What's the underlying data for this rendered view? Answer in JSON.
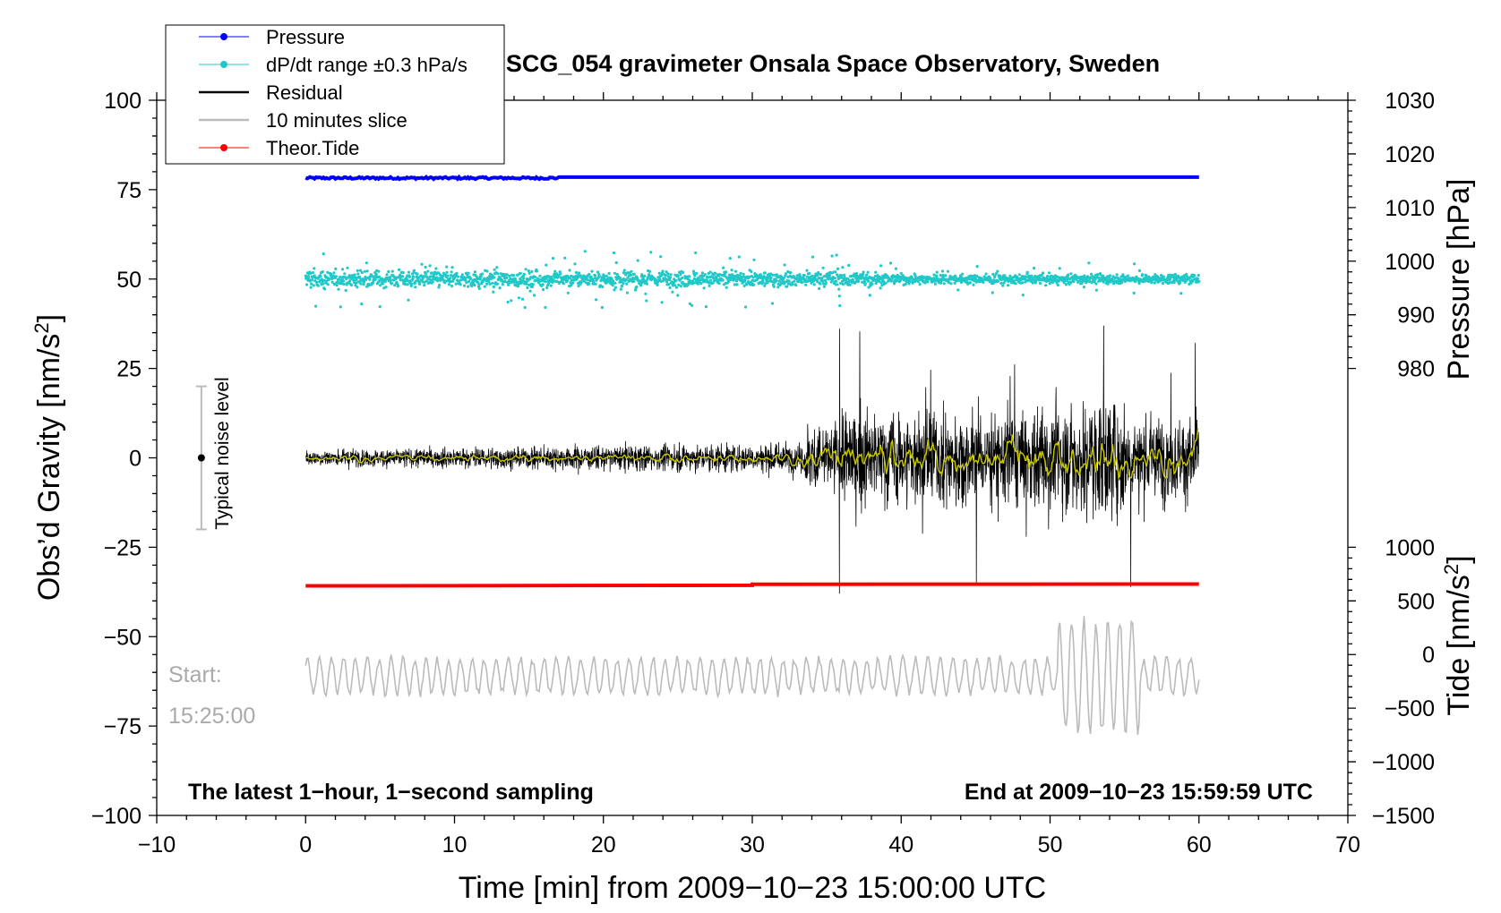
{
  "chart_data": {
    "type": "line",
    "title": "SCG_054 gravimeter Onsala Space Observatory, Sweden",
    "xlabel": "Time [min] from 2009−10−23 15:00:00 UTC",
    "ylabel_left": "Obs’d Gravity [nm/s²]",
    "ylabel_left_parts": {
      "main": "Obs’d Gravity [nm/s",
      "sup": "2",
      "end": "]"
    },
    "ylabel_right_pressure": "Pressure [hPa]",
    "ylabel_right_tide": "Tide [nm/s²]",
    "ylabel_right_tide_parts": {
      "main": "Tide [nm/s",
      "sup": "2",
      "end": "]"
    },
    "xlim": [
      -10,
      70
    ],
    "ylim": [
      -100,
      100
    ],
    "x_ticks": [
      -10,
      0,
      10,
      20,
      30,
      40,
      50,
      60,
      70
    ],
    "x_tick_labels": [
      "−10",
      "0",
      "10",
      "20",
      "30",
      "40",
      "50",
      "60",
      "70"
    ],
    "y_ticks": [
      100,
      75,
      50,
      25,
      0,
      -25,
      -50,
      -75,
      -100
    ],
    "y_tick_labels": [
      "100",
      "75",
      "50",
      "25",
      "0",
      "−25",
      "−50",
      "−75",
      "−100"
    ],
    "pressure_axis": {
      "range": [
        980,
        1030
      ],
      "ticks": [
        1030,
        1020,
        1010,
        1000,
        990,
        980
      ],
      "tick_labels": [
        "1030",
        "1020",
        "1010",
        "1000",
        "990",
        "980"
      ]
    },
    "tide_axis": {
      "range": [
        -1500,
        1000
      ],
      "ticks": [
        1000,
        500,
        0,
        -500,
        -1000,
        -1500
      ],
      "tick_labels": [
        "1000",
        "500",
        "0",
        "−500",
        "−1000",
        "−1500"
      ]
    },
    "legend": {
      "position": "top-left",
      "entries": [
        {
          "label": "Pressure",
          "color": "#0000ff",
          "marker": "dot"
        },
        {
          "label": "dP/dt range ±0.3 hPa/s",
          "color": "#20c8c8",
          "marker": "dot"
        },
        {
          "label": "Residual",
          "color": "#000000",
          "marker": "line"
        },
        {
          "label": "10 minutes slice",
          "color": "#bbbbbb",
          "marker": "line"
        },
        {
          "label": "Theor.Tide",
          "color": "#ff0000",
          "marker": "dot"
        }
      ]
    },
    "series": [
      {
        "name": "Pressure",
        "color": "#0000ff",
        "plotted_level": 78.5,
        "x_range": [
          0,
          60
        ]
      },
      {
        "name": "dP/dt range ±0.3 hPa/s",
        "color": "#20c8c8",
        "center": 50,
        "x_range": [
          0,
          60
        ]
      },
      {
        "name": "Residual",
        "color": "#000000",
        "center": 0,
        "x_range": [
          0,
          60
        ],
        "noise_amplitude_before_33min": 4,
        "noise_amplitude_after_33min": 25,
        "max": 37,
        "min": -38
      },
      {
        "name": "Residual smoothed",
        "color": "#c8c800",
        "center": 0,
        "x_range": [
          0,
          60
        ]
      },
      {
        "name": "Theor.Tide",
        "color": "#ff0000",
        "plotted_level": -35.5,
        "x_range": [
          0,
          60
        ]
      },
      {
        "name": "10 minutes slice",
        "color": "#bbbbbb",
        "center": -61,
        "x_range": [
          0,
          60
        ]
      }
    ],
    "noise_level_marker": {
      "label": "Typical noise level",
      "x": -7,
      "center": 0,
      "range": [
        -20,
        20
      ]
    },
    "annotations": {
      "start_label": "Start:",
      "start_time": "15:25:00",
      "bottom_left": "The latest 1−hour, 1−second sampling",
      "bottom_right": "End at 2009−10−23 15:59:59 UTC"
    }
  }
}
